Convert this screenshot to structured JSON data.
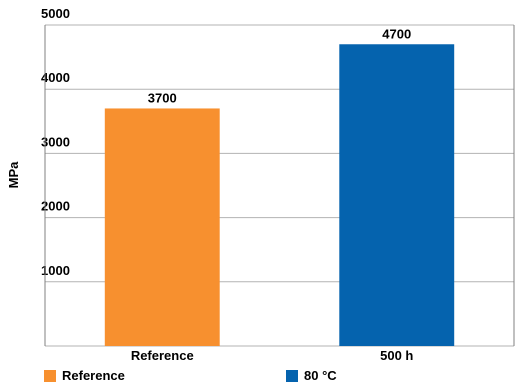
{
  "chart_data": {
    "type": "bar",
    "categories": [
      "Reference",
      "500 h"
    ],
    "series": [
      {
        "name": "Reference",
        "values": [
          3700,
          null
        ],
        "color": "#f7902f"
      },
      {
        "name": "80 °C",
        "values": [
          null,
          4700
        ],
        "color": "#0563ae"
      }
    ],
    "values": [
      3700,
      4700
    ],
    "data_labels": [
      "3700",
      "4700"
    ],
    "bar_colors": [
      "#f7902f",
      "#0563ae"
    ],
    "ylabel": "MPa",
    "ylim": [
      0,
      5000
    ],
    "yticks": [
      "1000",
      "2000",
      "3000",
      "4000",
      "5000"
    ],
    "grid": true,
    "legend_position": "bottom"
  }
}
